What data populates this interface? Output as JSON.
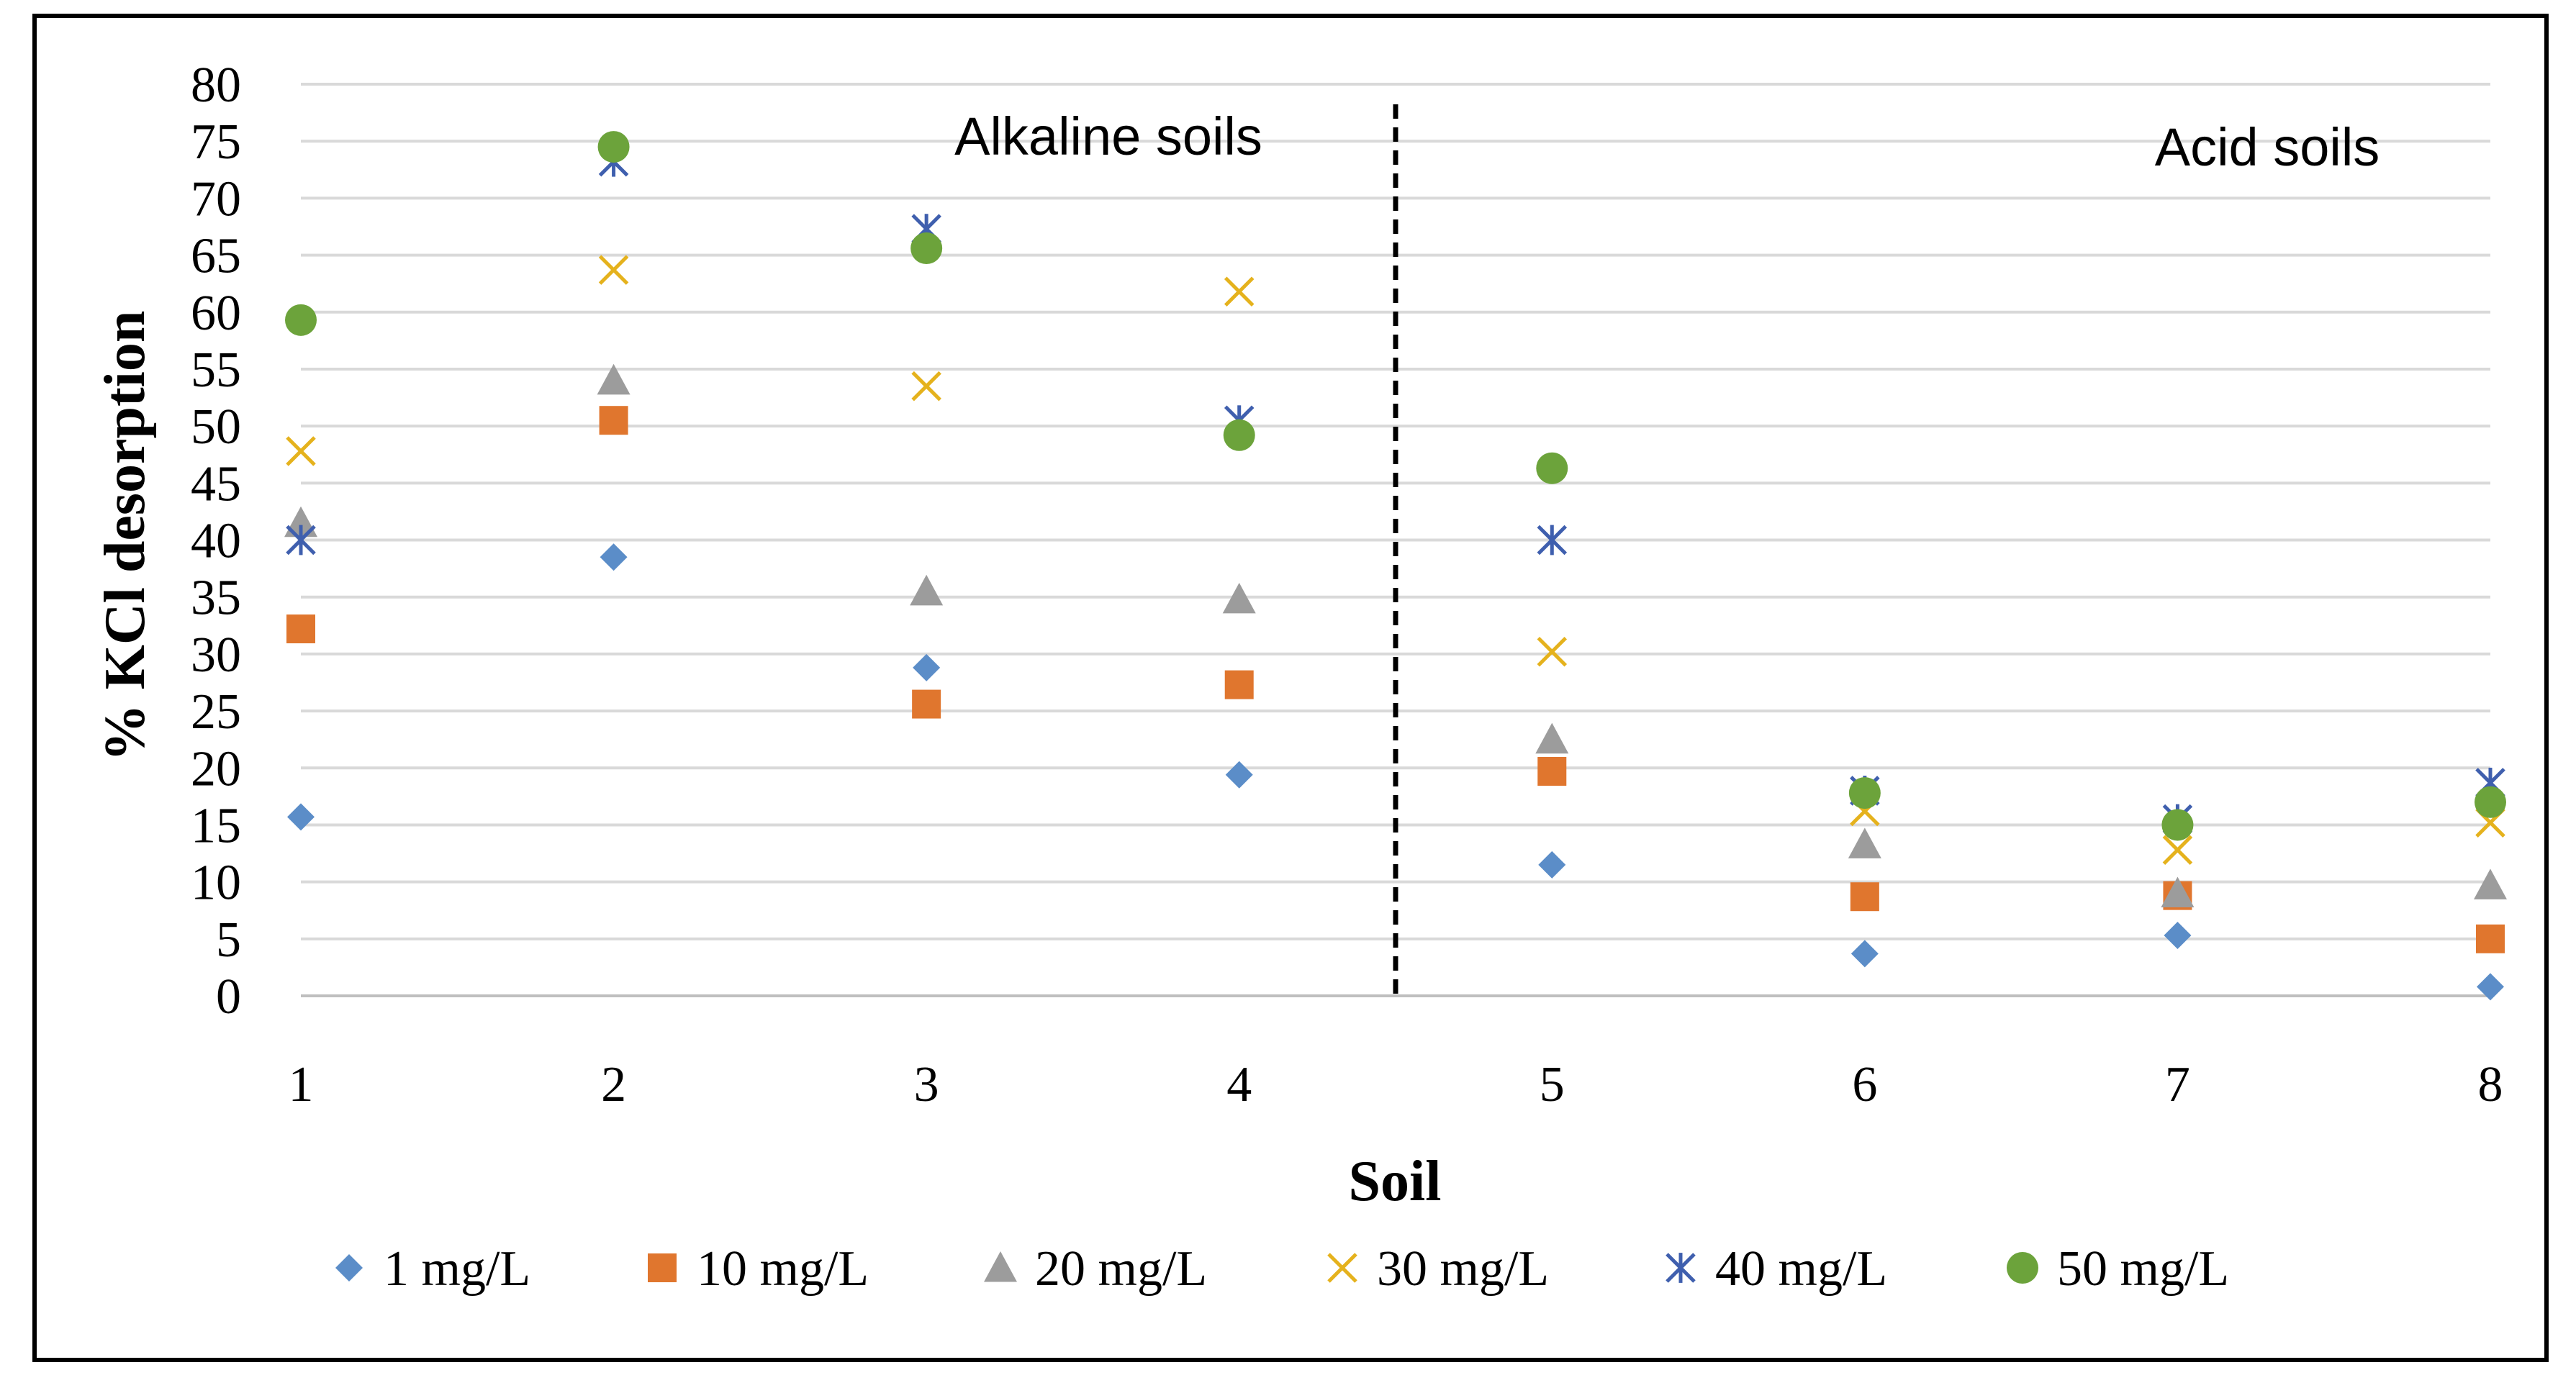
{
  "chart_data": {
    "type": "scatter",
    "title": "",
    "xlabel": "Soil",
    "ylabel": "% KCl desorption",
    "x": [
      1,
      2,
      3,
      4,
      5,
      6,
      7,
      8
    ],
    "x_ticks": [
      "1",
      "2",
      "3",
      "4",
      "5",
      "6",
      "7",
      "8"
    ],
    "ylim": [
      0,
      80
    ],
    "y_ticks": [
      "0",
      "5",
      "10",
      "15",
      "20",
      "25",
      "30",
      "35",
      "40",
      "45",
      "50",
      "55",
      "60",
      "65",
      "70",
      "75",
      "80"
    ],
    "grid": true,
    "legend_position": "bottom",
    "annotations": [
      {
        "name": "alkaline-soils-label",
        "text": "Alkaline soils"
      },
      {
        "name": "acid-soils-label",
        "text": "Acid soils"
      }
    ],
    "divider_at_x": 4.5,
    "series": [
      {
        "name": "1 mg/L",
        "marker": "diamond",
        "color": "#5B8DC8",
        "values": [
          15.7,
          38.5,
          28.8,
          19.4,
          11.5,
          3.7,
          5.3,
          0.8
        ]
      },
      {
        "name": "10 mg/L",
        "marker": "square",
        "color": "#E0762E",
        "values": [
          32.2,
          50.5,
          25.6,
          27.3,
          19.7,
          8.7,
          8.8,
          5.0
        ]
      },
      {
        "name": "20 mg/L",
        "marker": "triangle",
        "color": "#9C9C9C",
        "values": [
          41.5,
          54.0,
          35.5,
          34.8,
          22.5,
          13.3,
          9.0,
          9.7
        ]
      },
      {
        "name": "30 mg/L",
        "marker": "x",
        "color": "#E5B21D",
        "values": [
          47.8,
          63.7,
          53.5,
          61.8,
          30.2,
          16.2,
          12.8,
          15.2
        ]
      },
      {
        "name": "40 mg/L",
        "marker": "star",
        "color": "#3F5FAE",
        "values": [
          40.0,
          73.2,
          67.3,
          50.5,
          40.0,
          18.0,
          15.5,
          18.7
        ]
      },
      {
        "name": "50 mg/L",
        "marker": "circle",
        "color": "#6CA33B",
        "values": [
          59.3,
          74.5,
          65.6,
          49.2,
          46.3,
          17.8,
          15.0,
          17.0
        ]
      }
    ]
  }
}
